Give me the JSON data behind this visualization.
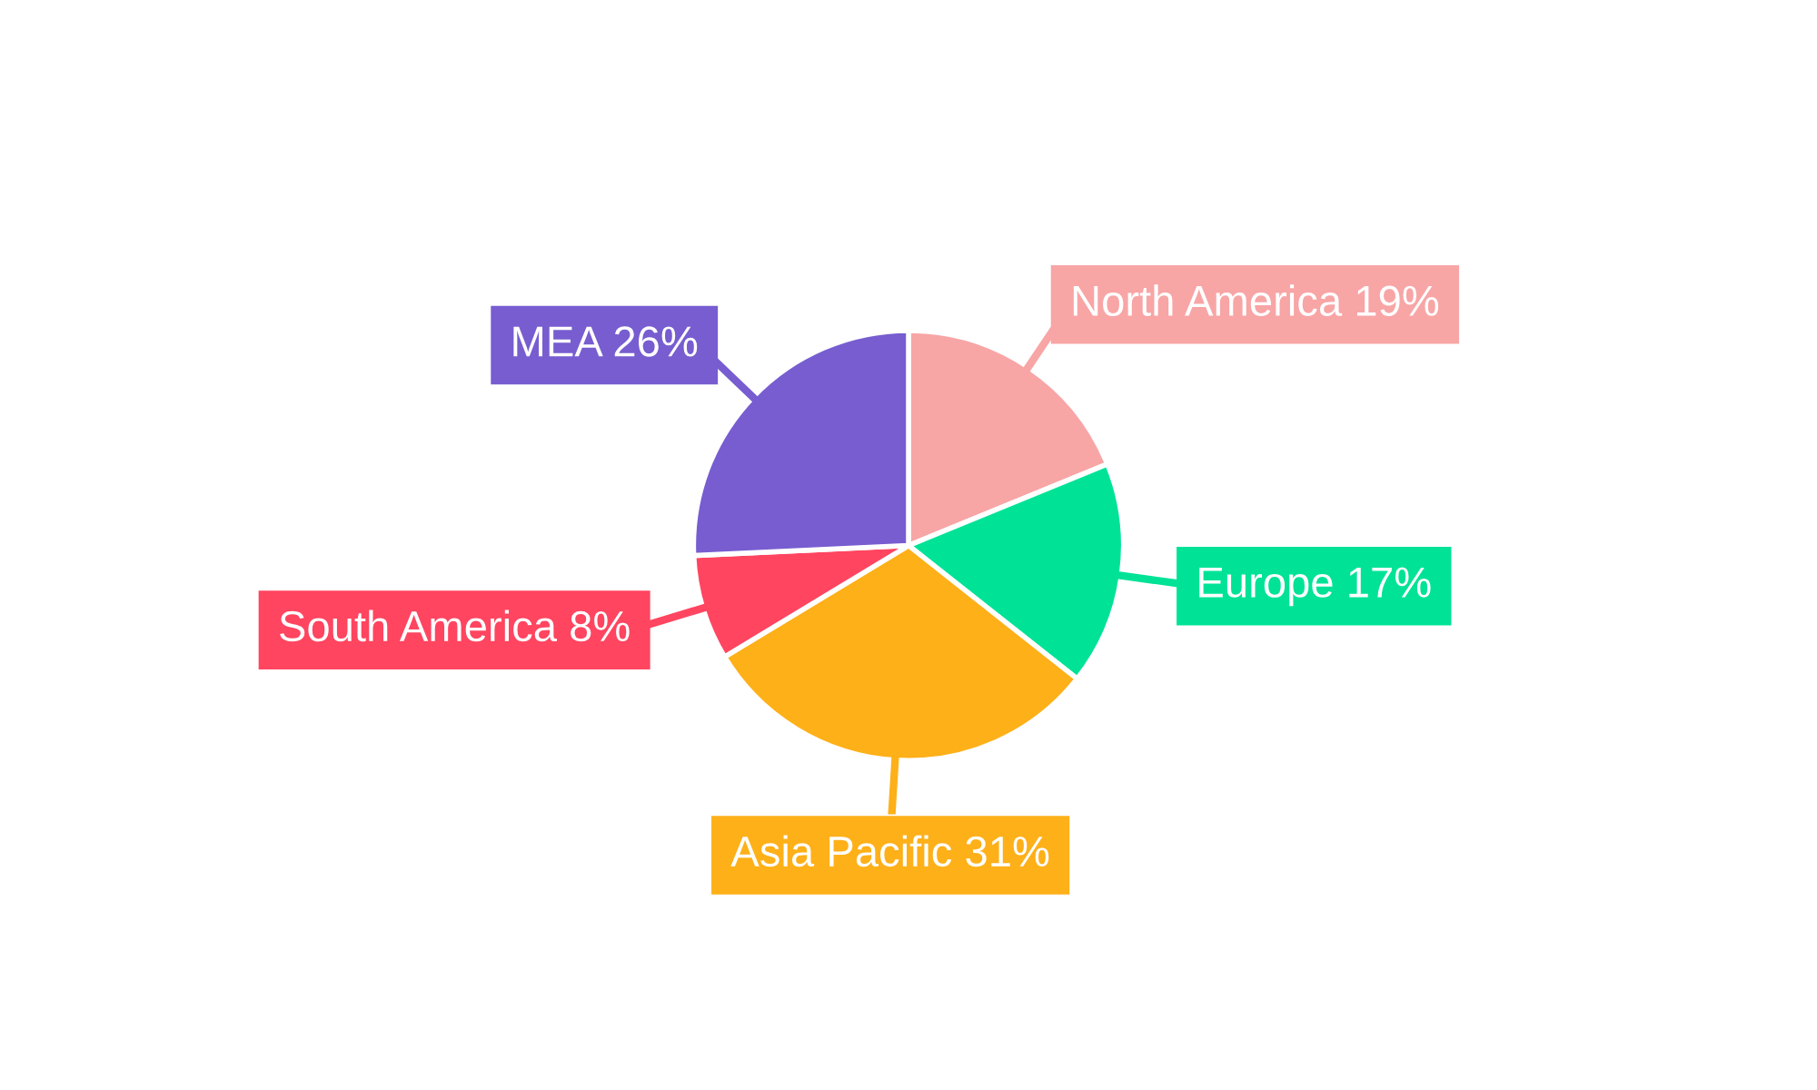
{
  "chart_data": {
    "type": "pie",
    "categories": [
      "North America",
      "Europe",
      "Asia Pacific",
      "South America",
      "MEA"
    ],
    "values": [
      19,
      17,
      31,
      8,
      26
    ],
    "colors": [
      "#f8a5a6",
      "#00e396",
      "#feb019",
      "#ff4560",
      "#775dd0"
    ],
    "value_labels": [
      "19%",
      "17%",
      "31%",
      "8%",
      "26%"
    ]
  }
}
